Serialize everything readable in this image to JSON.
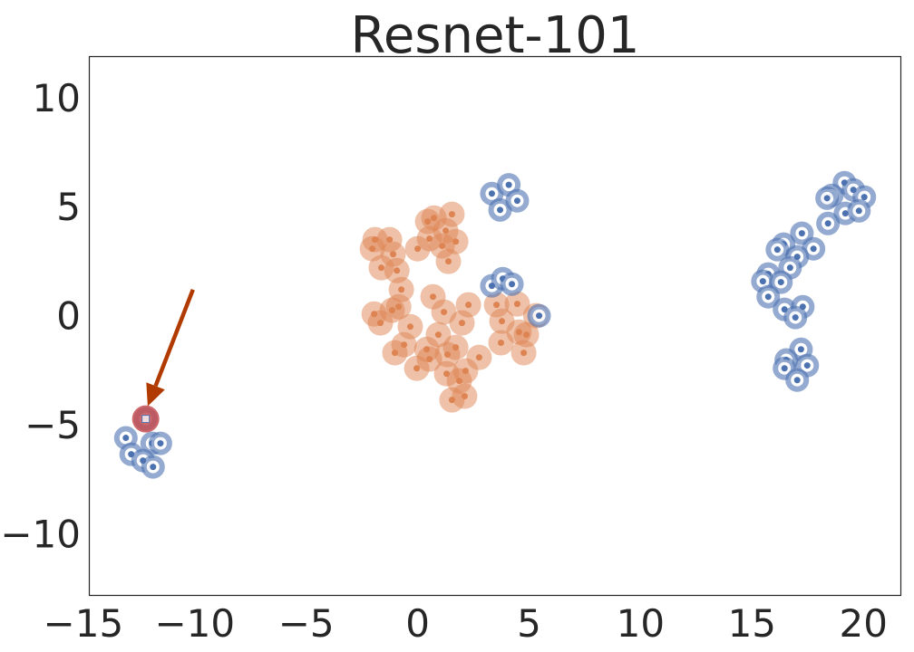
{
  "chart_data": {
    "type": "scatter",
    "title": "Resnet-101",
    "xlabel": "",
    "ylabel": "",
    "xlim": [
      -14.75,
      21.7
    ],
    "ylim": [
      -12.8,
      11.9
    ],
    "grid": false,
    "xticks": [
      -15,
      -10,
      -5,
      0,
      5,
      10,
      15,
      20
    ],
    "yticks": [
      10,
      5,
      0,
      -5,
      -10
    ],
    "xtick_labels": [
      "−15",
      "−10",
      "−5",
      "0",
      "5",
      "10",
      "15",
      "20"
    ],
    "ytick_labels": [
      "10",
      "5",
      "0",
      "−5",
      "−10"
    ],
    "colors": {
      "blue": "#4c72b0",
      "orange": "#dd8452",
      "highlight": "#c44e52",
      "arrow": "#b03a00"
    },
    "series": [
      {
        "color": "#dd8452",
        "points": [
          [
            1.54,
            4.65
          ],
          [
            0.73,
            4.48
          ],
          [
            0.45,
            4.32
          ],
          [
            1.26,
            3.9
          ],
          [
            0.53,
            3.53
          ],
          [
            1.71,
            3.4
          ],
          [
            1.1,
            3.2
          ],
          [
            0,
            3.07
          ],
          [
            1.38,
            2.49
          ],
          [
            -1.91,
            3.49
          ],
          [
            -1.26,
            3.49
          ],
          [
            -2.03,
            3.07
          ],
          [
            -1.1,
            2.82
          ],
          [
            -1.63,
            2.2
          ],
          [
            -0.93,
            2.07
          ],
          [
            -0.73,
            1.2
          ],
          [
            0.69,
            0.87
          ],
          [
            2.28,
            0.5
          ],
          [
            1.18,
            0.17
          ],
          [
            1.99,
            -0.33
          ],
          [
            -1.95,
            0.08
          ],
          [
            -0.85,
            0.41
          ],
          [
            -1.14,
            0.25
          ],
          [
            -1.67,
            -0.33
          ],
          [
            -0.33,
            -0.5
          ],
          [
            0.93,
            -0.87
          ],
          [
            -0.61,
            -1.33
          ],
          [
            -1.02,
            -1.7
          ],
          [
            0.41,
            -1.54
          ],
          [
            1.71,
            -1.45
          ],
          [
            1.34,
            -1.78
          ],
          [
            0.53,
            -1.99
          ],
          [
            2.76,
            -1.91
          ],
          [
            -0.04,
            -2.41
          ],
          [
            1.3,
            -2.66
          ],
          [
            2.15,
            -2.53
          ],
          [
            1.87,
            -2.99
          ],
          [
            1.54,
            -3.86
          ],
          [
            2.11,
            -3.69
          ],
          [
            3.54,
            0.5
          ],
          [
            4.47,
            0.54
          ],
          [
            3.78,
            -0.25
          ],
          [
            4.55,
            -0.75
          ],
          [
            4.88,
            -0.87
          ],
          [
            3.74,
            -1.24
          ],
          [
            4.76,
            -1.7
          ],
          [
            5.3,
            0.0
          ]
        ]
      },
      {
        "color": "#4c72b0",
        "points": [
          [
            3.33,
            5.6
          ],
          [
            4.09,
            6.0
          ],
          [
            3.7,
            4.85
          ],
          [
            4.47,
            5.27
          ],
          [
            3.33,
            1.37
          ],
          [
            3.82,
            1.7
          ],
          [
            4.23,
            1.45
          ],
          [
            5.45,
            0.0
          ],
          [
            19.15,
            6.1
          ],
          [
            19.55,
            5.77
          ],
          [
            20.04,
            5.44
          ],
          [
            18.58,
            5.52
          ],
          [
            18.37,
            5.39
          ],
          [
            19.19,
            4.69
          ],
          [
            19.8,
            4.81
          ],
          [
            18.41,
            4.23
          ],
          [
            17.24,
            3.78
          ],
          [
            16.42,
            3.28
          ],
          [
            16.14,
            3.03
          ],
          [
            17.76,
            3.07
          ],
          [
            17.03,
            2.7
          ],
          [
            16.71,
            2.2
          ],
          [
            15.73,
            1.91
          ],
          [
            15.49,
            1.58
          ],
          [
            16.3,
            1.54
          ],
          [
            15.73,
            0.87
          ],
          [
            16.46,
            0.29
          ],
          [
            17.28,
            0.41
          ],
          [
            16.95,
            -0.08
          ],
          [
            17.2,
            -1.54
          ],
          [
            16.54,
            -2.03
          ],
          [
            17.48,
            -2.28
          ],
          [
            16.46,
            -2.41
          ],
          [
            17.03,
            -2.95
          ],
          [
            -13.09,
            -5.6
          ],
          [
            -12.85,
            -6.35
          ],
          [
            -11.91,
            -5.85
          ],
          [
            -11.54,
            -5.85
          ],
          [
            -12.32,
            -6.64
          ],
          [
            -11.87,
            -6.93
          ],
          [
            -12.2,
            -4.73
          ]
        ]
      }
    ],
    "highlight": {
      "point": [
        -12.2,
        -4.73
      ],
      "color": "#c44e52"
    },
    "annotation": {
      "type": "arrow",
      "from": [
        -10.08,
        1.2
      ],
      "to": [
        -12.11,
        -4.15
      ],
      "color": "#b03a00"
    }
  }
}
